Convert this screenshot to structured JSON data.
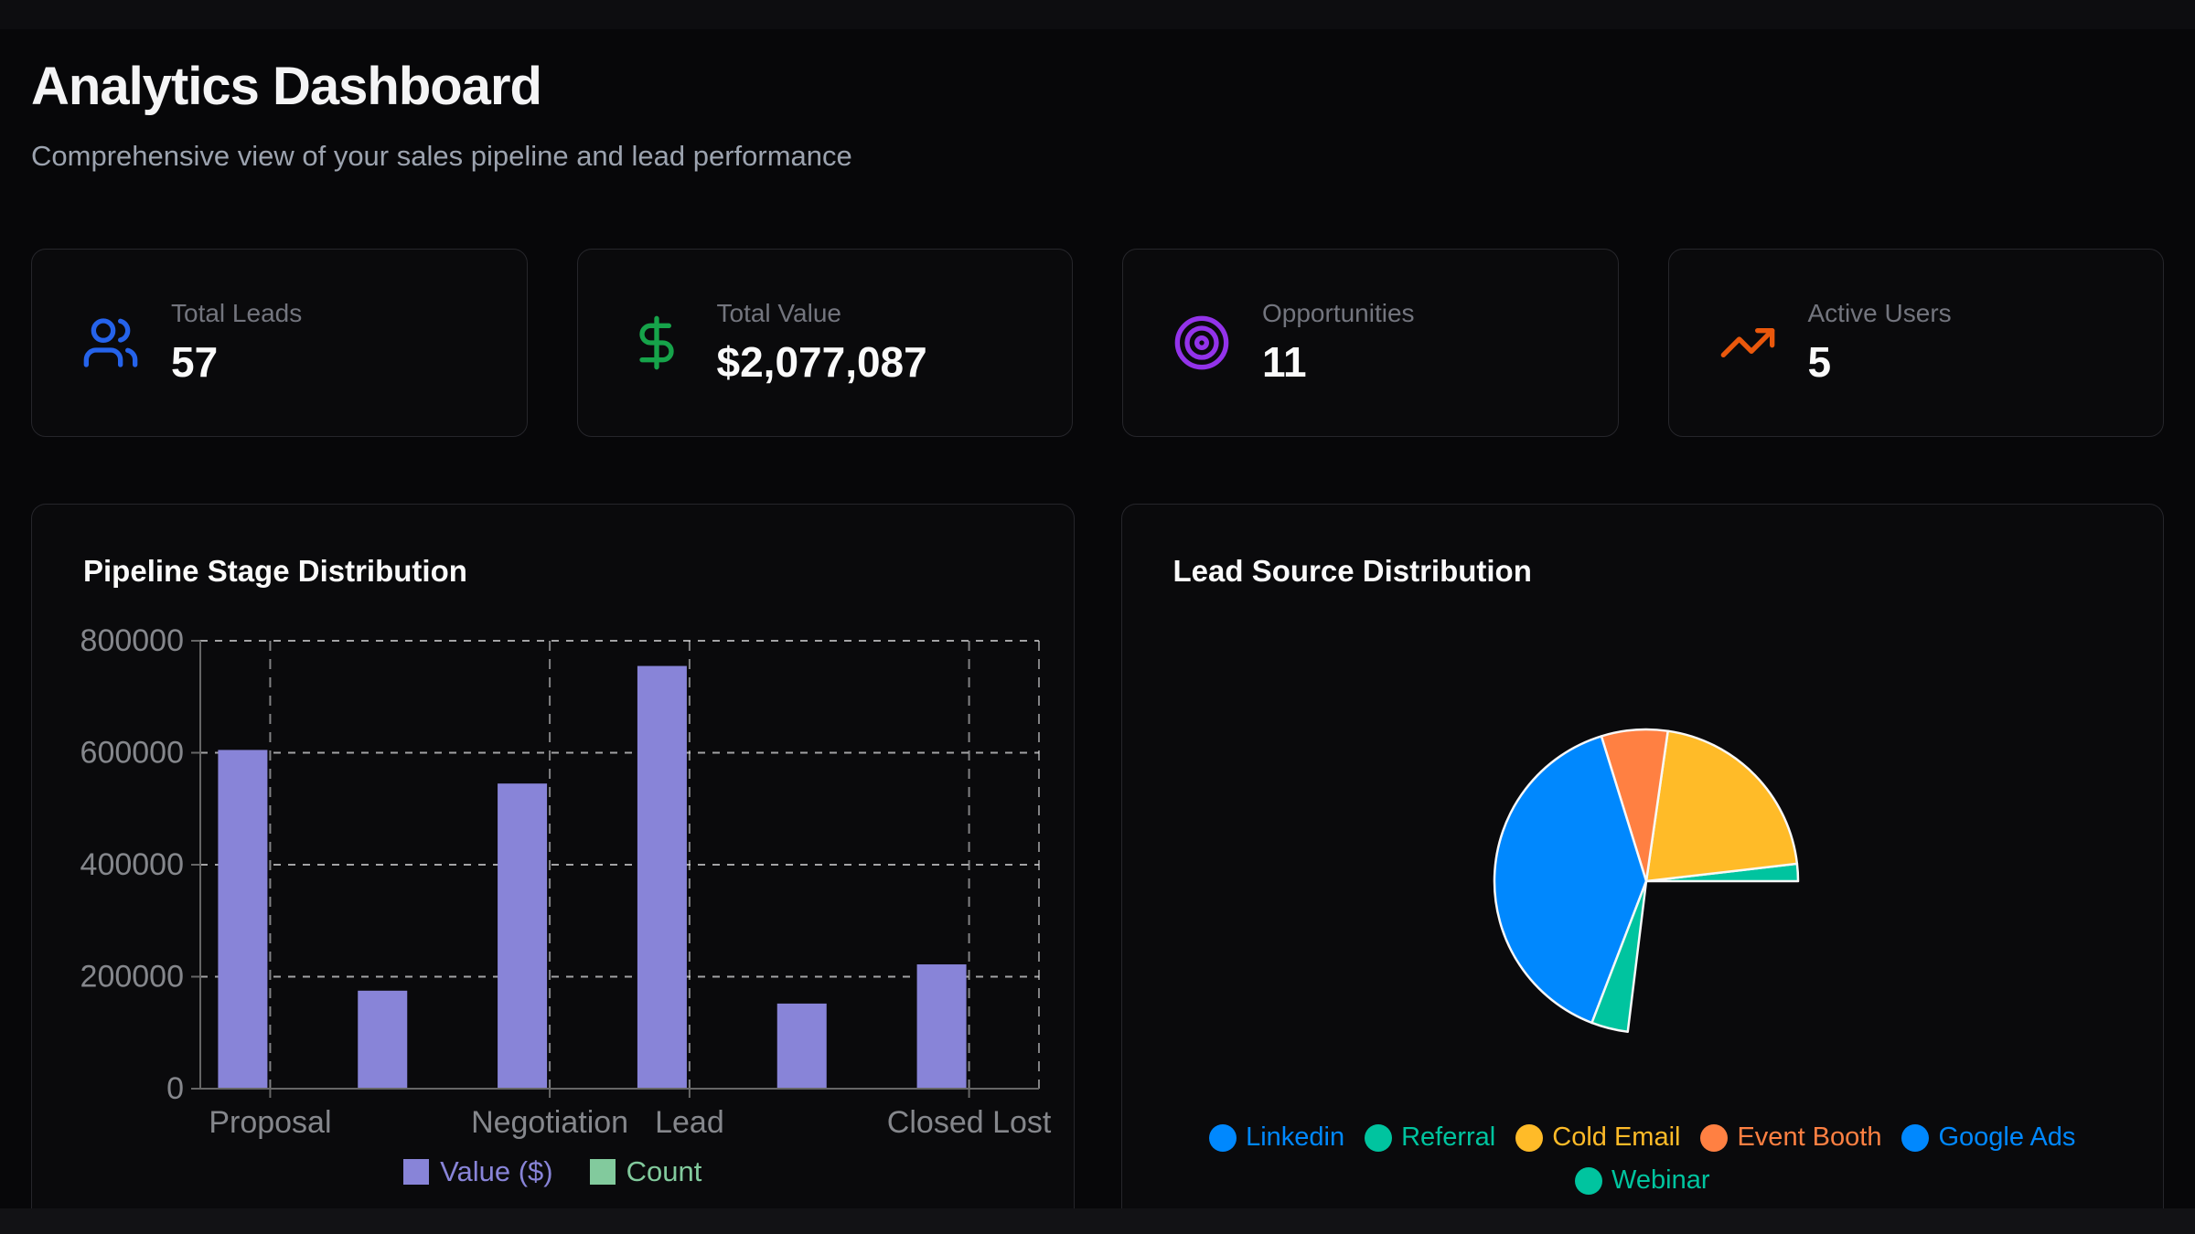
{
  "page": {
    "title": "Analytics Dashboard",
    "subtitle": "Comprehensive view of your sales pipeline and lead performance"
  },
  "stats": [
    {
      "label": "Total Leads",
      "value": "57",
      "icon": "users-icon",
      "icon_color": "#2563eb"
    },
    {
      "label": "Total Value",
      "value": "$2,077,087",
      "icon": "dollar-sign-icon",
      "icon_color": "#16a34a"
    },
    {
      "label": "Opportunities",
      "value": "11",
      "icon": "target-icon",
      "icon_color": "#9333ea"
    },
    {
      "label": "Active Users",
      "value": "5",
      "icon": "trending-up-icon",
      "icon_color": "#ea580c"
    }
  ],
  "chart_data": [
    {
      "type": "bar",
      "title": "Pipeline Stage Distribution",
      "categories": [
        "Proposal",
        "",
        "Negotiation",
        "Lead",
        "",
        "Closed Lost"
      ],
      "visible_x_tick_labels": [
        {
          "index": 0,
          "label": "Proposal"
        },
        {
          "index": 2,
          "label": "Negotiation"
        },
        {
          "index": 3,
          "label": "Lead"
        },
        {
          "index": 5,
          "label": "Closed Lost"
        }
      ],
      "series": [
        {
          "name": "Value ($)",
          "color": "#8884d8",
          "values": [
            605000,
            175000,
            545000,
            755000,
            152000,
            222000
          ]
        },
        {
          "name": "Count",
          "color": "#82ca9d",
          "values": [
            null,
            null,
            null,
            null,
            null,
            null
          ],
          "note": "Count bars are too small to be visible at the shared dollar axis scale"
        }
      ],
      "xlabel": "",
      "ylabel": "",
      "ylim": [
        0,
        800000
      ],
      "yticks": [
        0,
        200000,
        400000,
        600000,
        800000
      ],
      "grid": "dashed",
      "legend_position": "bottom"
    },
    {
      "type": "pie",
      "title": "Lead Source Distribution",
      "legend": [
        {
          "label": "Linkedin",
          "color": "#0088FE"
        },
        {
          "label": "Referral",
          "color": "#00C49F"
        },
        {
          "label": "Cold Email",
          "color": "#FFBB28"
        },
        {
          "label": "Event Booth",
          "color": "#FF8042"
        },
        {
          "label": "Google Ads",
          "color": "#0088FE"
        },
        {
          "label": "Webinar",
          "color": "#00C49F"
        }
      ],
      "angle_convention": "degrees counterclockwise from 3 o'clock",
      "slices": [
        {
          "label": "Referral",
          "color": "#00C49F",
          "start_deg": 0,
          "end_deg": 6.6,
          "percent_of_circle": 1.8
        },
        {
          "label": "Cold Email",
          "color": "#FFBB28",
          "start_deg": 6.6,
          "end_deg": 81.8,
          "percent_of_circle": 20.9
        },
        {
          "label": "Event Booth",
          "color": "#FF8042",
          "start_deg": 81.8,
          "end_deg": 107.2,
          "percent_of_circle": 7.1
        },
        {
          "label": "Linkedin",
          "color": "#0088FE",
          "start_deg": 107.2,
          "end_deg": 249,
          "percent_of_circle": 39.4
        },
        {
          "label": "Webinar",
          "color": "#00C49F",
          "start_deg": 249,
          "end_deg": 263,
          "percent_of_circle": 3.9
        }
      ],
      "empty_sector": {
        "start_deg": 263,
        "end_deg": 360,
        "percent_of_circle": 26.9,
        "note": "sector rendered as background, no visible slice"
      },
      "legend_position": "bottom"
    }
  ],
  "theme": {
    "page_bg": "#121215",
    "surface_bg": "#070709",
    "card_bg": "#0a0a0c",
    "card_border": "#26262b",
    "text_primary": "#fafafa",
    "text_muted": "#9ca3af",
    "stat_label": "#73757e",
    "axis_line": "#666666",
    "tick_text": "#85878c",
    "gridline": "#e4e4e7"
  }
}
